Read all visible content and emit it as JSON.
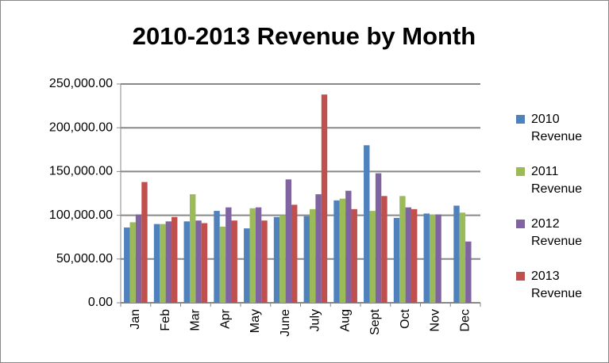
{
  "chart_data": {
    "type": "bar",
    "title": "2010-2013 Revenue by Month",
    "categories": [
      "Jan",
      "Feb",
      "Mar",
      "Apr",
      "May",
      "June",
      "July",
      "Aug",
      "Sept",
      "Oct",
      "Nov",
      "Dec"
    ],
    "series": [
      {
        "name": "2010 Revenue",
        "color": "#4f81bd",
        "values": [
          86000,
          90000,
          93000,
          105000,
          85000,
          98000,
          99000,
          117000,
          180000,
          97000,
          102000,
          111000
        ]
      },
      {
        "name": "2011 Revenue",
        "color": "#9bbb59",
        "values": [
          92000,
          90000,
          124000,
          87000,
          108000,
          100000,
          107000,
          119000,
          105000,
          122000,
          101000,
          103000
        ]
      },
      {
        "name": "2012 Revenue",
        "color": "#8064a2",
        "values": [
          101000,
          93000,
          94000,
          109000,
          109000,
          141000,
          124000,
          128000,
          148000,
          109000,
          101000,
          70000
        ]
      },
      {
        "name": "2013 Revenue",
        "color": "#c0504d",
        "values": [
          138000,
          98000,
          91000,
          94000,
          94000,
          112000,
          238000,
          107000,
          122000,
          107000,
          null,
          null
        ]
      }
    ],
    "ylim": [
      0,
      250000
    ],
    "yticks": [
      {
        "value": 0,
        "label": "0.00"
      },
      {
        "value": 50000,
        "label": "50,000.00"
      },
      {
        "value": 100000,
        "label": "100,000.00"
      },
      {
        "value": 150000,
        "label": "150,000.00"
      },
      {
        "value": 200000,
        "label": "200,000.00"
      },
      {
        "value": 250000,
        "label": "250,000.00"
      }
    ],
    "grid": true,
    "legend": "right"
  }
}
